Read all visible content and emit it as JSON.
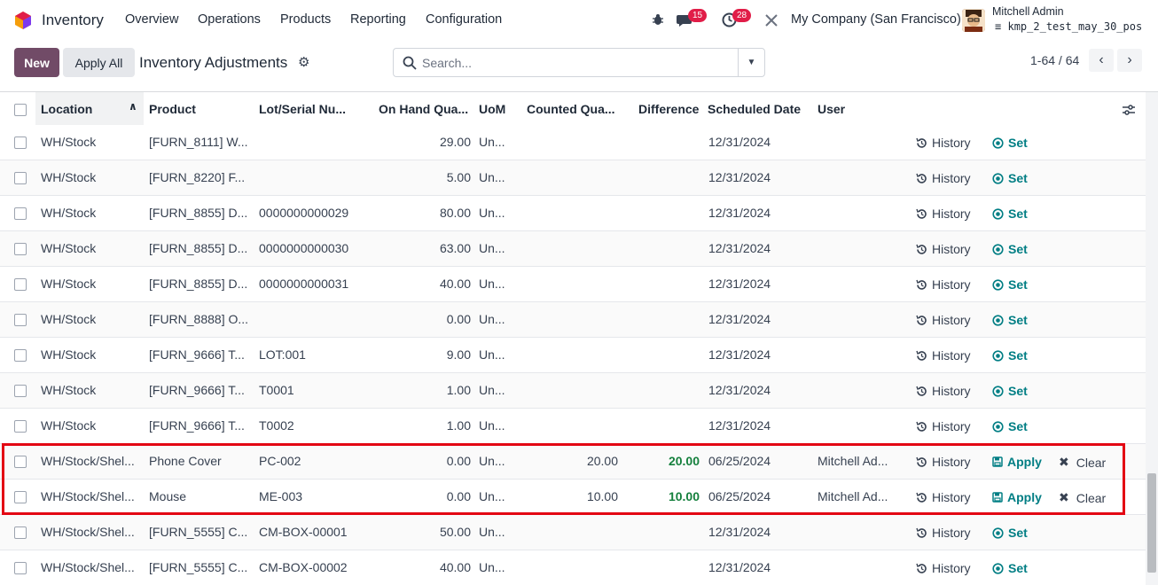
{
  "navbar": {
    "app_name": "Inventory",
    "menu": [
      "Overview",
      "Operations",
      "Products",
      "Reporting",
      "Configuration"
    ],
    "messages_count": "15",
    "activities_count": "28",
    "company": "My Company (San Francisco)",
    "user_name": "Mitchell Admin",
    "db_name": "kmp_2_test_may_30_pos"
  },
  "control": {
    "new_label": "New",
    "apply_all_label": "Apply All",
    "title": "Inventory Adjustments",
    "search_placeholder": "Search...",
    "pager": "1-64 / 64"
  },
  "columns": {
    "location": "Location",
    "product": "Product",
    "lot": "Lot/Serial Nu...",
    "on_hand": "On Hand Qua...",
    "uom": "UoM",
    "counted": "Counted Qua...",
    "difference": "Difference",
    "scheduled_date": "Scheduled Date",
    "user": "User"
  },
  "actions": {
    "history": "History",
    "set": "Set",
    "apply": "Apply",
    "clear": "Clear"
  },
  "rows": [
    {
      "location": "WH/Stock",
      "product": "[FURN_8111] W...",
      "lot": "",
      "on_hand": "29.00",
      "uom": "Un...",
      "counted": "",
      "difference": "",
      "date": "12/31/2024",
      "user": "",
      "mode": "set"
    },
    {
      "location": "WH/Stock",
      "product": "[FURN_8220] F...",
      "lot": "",
      "on_hand": "5.00",
      "uom": "Un...",
      "counted": "",
      "difference": "",
      "date": "12/31/2024",
      "user": "",
      "mode": "set"
    },
    {
      "location": "WH/Stock",
      "product": "[FURN_8855] D...",
      "lot": "0000000000029",
      "on_hand": "80.00",
      "uom": "Un...",
      "counted": "",
      "difference": "",
      "date": "12/31/2024",
      "user": "",
      "mode": "set"
    },
    {
      "location": "WH/Stock",
      "product": "[FURN_8855] D...",
      "lot": "0000000000030",
      "on_hand": "63.00",
      "uom": "Un...",
      "counted": "",
      "difference": "",
      "date": "12/31/2024",
      "user": "",
      "mode": "set"
    },
    {
      "location": "WH/Stock",
      "product": "[FURN_8855] D...",
      "lot": "0000000000031",
      "on_hand": "40.00",
      "uom": "Un...",
      "counted": "",
      "difference": "",
      "date": "12/31/2024",
      "user": "",
      "mode": "set"
    },
    {
      "location": "WH/Stock",
      "product": "[FURN_8888] O...",
      "lot": "",
      "on_hand": "0.00",
      "uom": "Un...",
      "counted": "",
      "difference": "",
      "date": "12/31/2024",
      "user": "",
      "mode": "set"
    },
    {
      "location": "WH/Stock",
      "product": "[FURN_9666] T...",
      "lot": "LOT:001",
      "on_hand": "9.00",
      "uom": "Un...",
      "counted": "",
      "difference": "",
      "date": "12/31/2024",
      "user": "",
      "mode": "set"
    },
    {
      "location": "WH/Stock",
      "product": "[FURN_9666] T...",
      "lot": "T0001",
      "on_hand": "1.00",
      "uom": "Un...",
      "counted": "",
      "difference": "",
      "date": "12/31/2024",
      "user": "",
      "mode": "set"
    },
    {
      "location": "WH/Stock",
      "product": "[FURN_9666] T...",
      "lot": "T0002",
      "on_hand": "1.00",
      "uom": "Un...",
      "counted": "",
      "difference": "",
      "date": "12/31/2024",
      "user": "",
      "mode": "set"
    },
    {
      "location": "WH/Stock/Shel...",
      "product": "Phone Cover",
      "lot": "PC-002",
      "on_hand": "0.00",
      "uom": "Un...",
      "counted": "20.00",
      "difference": "20.00",
      "date": "06/25/2024",
      "user": "Mitchell Ad...",
      "mode": "apply"
    },
    {
      "location": "WH/Stock/Shel...",
      "product": "Mouse",
      "lot": "ME-003",
      "on_hand": "0.00",
      "uom": "Un...",
      "counted": "10.00",
      "difference": "10.00",
      "date": "06/25/2024",
      "user": "Mitchell Ad...",
      "mode": "apply"
    },
    {
      "location": "WH/Stock/Shel...",
      "product": "[FURN_5555] C...",
      "lot": "CM-BOX-00001",
      "on_hand": "50.00",
      "uom": "Un...",
      "counted": "",
      "difference": "",
      "date": "12/31/2024",
      "user": "",
      "mode": "set"
    },
    {
      "location": "WH/Stock/Shel...",
      "product": "[FURN_5555] C...",
      "lot": "CM-BOX-00002",
      "on_hand": "40.00",
      "uom": "Un...",
      "counted": "",
      "difference": "",
      "date": "12/31/2024",
      "user": "",
      "mode": "set"
    }
  ]
}
